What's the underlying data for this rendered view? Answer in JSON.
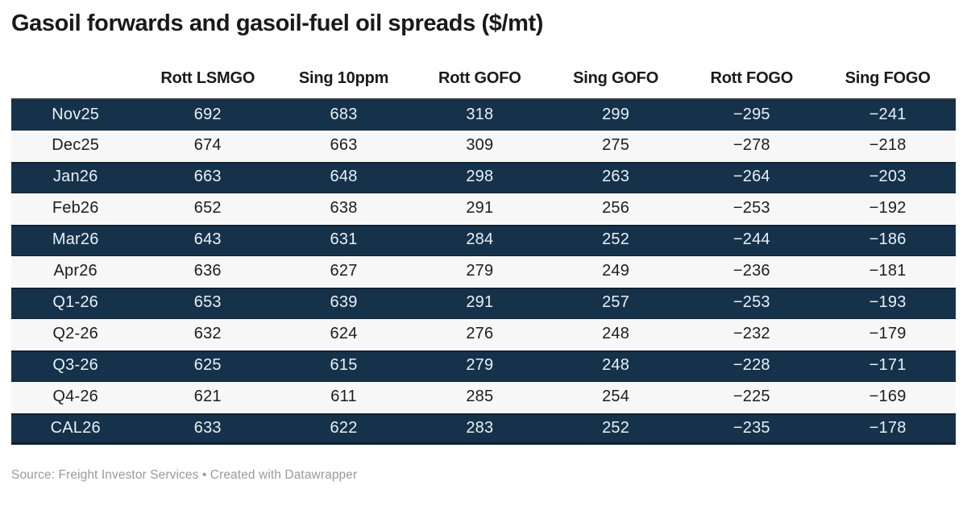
{
  "title": "Gasoil forwards and gasoil-fuel oil spreads ($/mt)",
  "footer": "Source: Freight Investor Services • Created with Datawrapper",
  "colors": {
    "dark_row_bg": "#16324a",
    "dark_row_text": "#e9f0f6",
    "light_row_bg": "#f7f7f7",
    "light_row_text": "#1d1d1d",
    "header_text": "#1a1a1a",
    "title_text": "#191919",
    "footer_text": "#9a9a9a"
  },
  "chart_data": {
    "type": "table",
    "title": "Gasoil forwards and gasoil-fuel oil spreads ($/mt)",
    "columns": [
      "",
      "Rott LSMGO",
      "Sing 10ppm",
      "Rott GOFO",
      "Sing GOFO",
      "Rott FOGO",
      "Sing FOGO"
    ],
    "rows": [
      {
        "label": "Nov25",
        "values": [
          692,
          683,
          318,
          299,
          -295,
          -241
        ]
      },
      {
        "label": "Dec25",
        "values": [
          674,
          663,
          309,
          275,
          -278,
          -218
        ]
      },
      {
        "label": "Jan26",
        "values": [
          663,
          648,
          298,
          263,
          -264,
          -203
        ]
      },
      {
        "label": "Feb26",
        "values": [
          652,
          638,
          291,
          256,
          -253,
          -192
        ]
      },
      {
        "label": "Mar26",
        "values": [
          643,
          631,
          284,
          252,
          -244,
          -186
        ]
      },
      {
        "label": "Apr26",
        "values": [
          636,
          627,
          279,
          249,
          -236,
          -181
        ]
      },
      {
        "label": "Q1-26",
        "values": [
          653,
          639,
          291,
          257,
          -253,
          -193
        ]
      },
      {
        "label": "Q2-26",
        "values": [
          632,
          624,
          276,
          248,
          -232,
          -179
        ]
      },
      {
        "label": "Q3-26",
        "values": [
          625,
          615,
          279,
          248,
          -228,
          -171
        ]
      },
      {
        "label": "Q4-26",
        "values": [
          621,
          611,
          285,
          254,
          -225,
          -169
        ]
      },
      {
        "label": "CAL26",
        "values": [
          633,
          622,
          283,
          252,
          -235,
          -178
        ]
      }
    ],
    "row_striping": "alternating starting dark",
    "source_note": "Source: Freight Investor Services • Created with Datawrapper"
  }
}
